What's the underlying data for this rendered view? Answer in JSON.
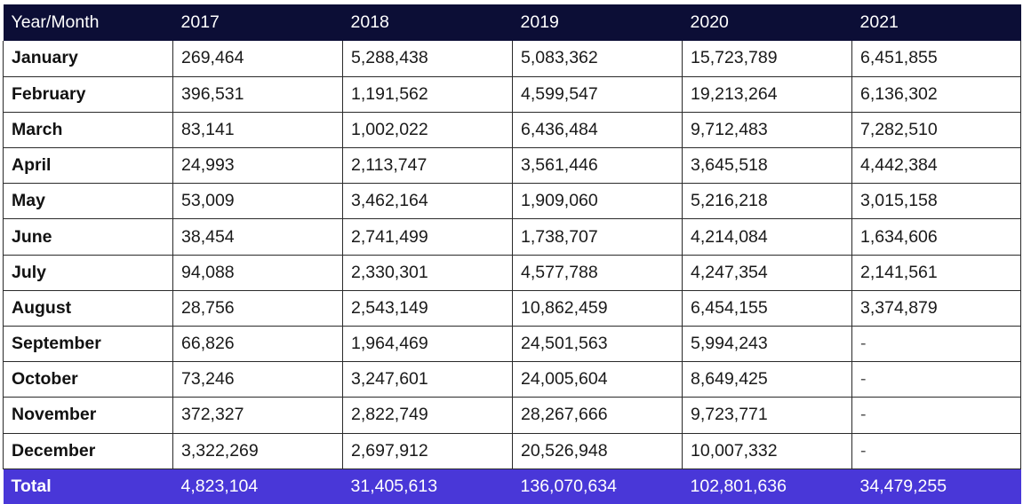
{
  "chart_data": {
    "type": "table",
    "columns": [
      "Year/Month",
      "2017",
      "2018",
      "2019",
      "2020",
      "2021"
    ],
    "rows": [
      [
        "January",
        "269,464",
        "5,288,438",
        "5,083,362",
        "15,723,789",
        "6,451,855"
      ],
      [
        "February",
        "396,531",
        "1,191,562",
        "4,599,547",
        "19,213,264",
        "6,136,302"
      ],
      [
        "March",
        "83,141",
        "1,002,022",
        "6,436,484",
        "9,712,483",
        "7,282,510"
      ],
      [
        "April",
        "24,993",
        "2,113,747",
        "3,561,446",
        "3,645,518",
        "4,442,384"
      ],
      [
        "May",
        "53,009",
        "3,462,164",
        "1,909,060",
        "5,216,218",
        "3,015,158"
      ],
      [
        "June",
        "38,454",
        "2,741,499",
        "1,738,707",
        "4,214,084",
        "1,634,606"
      ],
      [
        "July",
        "94,088",
        "2,330,301",
        "4,577,788",
        "4,247,354",
        "2,141,561"
      ],
      [
        "August",
        "28,756",
        "2,543,149",
        "10,862,459",
        "6,454,155",
        "3,374,879"
      ],
      [
        "September",
        "66,826",
        "1,964,469",
        "24,501,563",
        "5,994,243",
        "-"
      ],
      [
        "October",
        "73,246",
        "3,247,601",
        "24,005,604",
        "8,649,425",
        "-"
      ],
      [
        "November",
        "372,327",
        "2,822,749",
        "28,267,666",
        "9,723,771",
        "-"
      ],
      [
        "December",
        "3,322,269",
        "2,697,912",
        "20,526,948",
        "10,007,332",
        "-"
      ]
    ],
    "total": [
      "Total",
      "4,823,104",
      "31,405,613",
      "136,070,634",
      "102,801,636",
      "34,479,255"
    ]
  },
  "colors": {
    "header_bg": "#0c0e36",
    "total_bg": "#4937d8",
    "text": "#1a1a1a"
  }
}
